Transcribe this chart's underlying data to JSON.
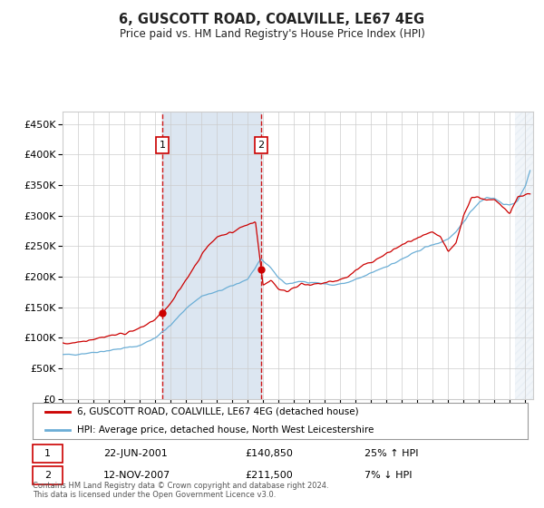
{
  "title": "6, GUSCOTT ROAD, COALVILLE, LE67 4EG",
  "subtitle": "Price paid vs. HM Land Registry's House Price Index (HPI)",
  "ylim": [
    0,
    470000
  ],
  "yticks": [
    0,
    50000,
    100000,
    150000,
    200000,
    250000,
    300000,
    350000,
    400000,
    450000
  ],
  "xlim_start": 1995.0,
  "xlim_end": 2025.5,
  "sale1_date": 2001.47,
  "sale1_price": 140850,
  "sale1_label": "1",
  "sale1_text": "22-JUN-2001",
  "sale1_price_text": "£140,850",
  "sale1_pct": "25% ↑ HPI",
  "sale2_date": 2007.87,
  "sale2_price": 211500,
  "sale2_label": "2",
  "sale2_text": "12-NOV-2007",
  "sale2_price_text": "£211,500",
  "sale2_pct": "7% ↓ HPI",
  "legend_label1": "6, GUSCOTT ROAD, COALVILLE, LE67 4EG (detached house)",
  "legend_label2": "HPI: Average price, detached house, North West Leicestershire",
  "footnote": "Contains HM Land Registry data © Crown copyright and database right 2024.\nThis data is licensed under the Open Government Licence v3.0.",
  "hpi_color": "#6baed6",
  "price_color": "#cc0000",
  "shade_color": "#dce6f1",
  "background_color": "#ffffff",
  "grid_color": "#cccccc",
  "hpi_key_points_t": [
    1995.0,
    1996.0,
    1997.0,
    1998.0,
    1999.0,
    2000.0,
    2001.0,
    2002.0,
    2003.0,
    2004.0,
    2005.0,
    2006.0,
    2007.0,
    2007.87,
    2008.5,
    2009.0,
    2009.5,
    2010.5,
    2011.5,
    2012.5,
    2013.5,
    2014.5,
    2015.5,
    2016.5,
    2017.5,
    2018.5,
    2019.0,
    2019.5,
    2020.0,
    2020.5,
    2021.0,
    2021.5,
    2022.0,
    2022.5,
    2023.0,
    2023.5,
    2024.0,
    2024.5,
    2025.0,
    2025.3
  ],
  "hpi_key_points_v": [
    72000,
    73000,
    76000,
    79000,
    83000,
    87000,
    100000,
    120000,
    148000,
    168000,
    175000,
    185000,
    196000,
    228000,
    215000,
    198000,
    188000,
    192000,
    190000,
    186000,
    190000,
    200000,
    212000,
    222000,
    235000,
    248000,
    252000,
    256000,
    262000,
    272000,
    290000,
    308000,
    322000,
    330000,
    328000,
    320000,
    316000,
    325000,
    348000,
    375000
  ],
  "price_key_points_t": [
    1995.0,
    1996.0,
    1997.0,
    1998.0,
    1999.0,
    2000.0,
    2001.0,
    2001.47,
    2002.0,
    2003.0,
    2004.0,
    2004.5,
    2005.0,
    2005.5,
    2006.0,
    2006.5,
    2007.0,
    2007.5,
    2007.87,
    2008.0,
    2008.5,
    2009.0,
    2009.5,
    2010.0,
    2010.5,
    2011.0,
    2011.5,
    2012.0,
    2012.5,
    2013.0,
    2013.5,
    2014.0,
    2014.5,
    2015.5,
    2016.5,
    2017.5,
    2018.0,
    2018.5,
    2019.0,
    2019.5,
    2020.0,
    2020.5,
    2021.0,
    2021.5,
    2022.0,
    2022.5,
    2023.0,
    2023.5,
    2024.0,
    2024.5,
    2025.0,
    2025.3
  ],
  "price_key_points_v": [
    90000,
    93000,
    98000,
    103000,
    107000,
    115000,
    130000,
    140850,
    155000,
    195000,
    235000,
    252000,
    265000,
    270000,
    272000,
    280000,
    285000,
    291000,
    211500,
    185000,
    195000,
    180000,
    175000,
    183000,
    188000,
    185000,
    188000,
    190000,
    192000,
    195000,
    200000,
    210000,
    218000,
    230000,
    245000,
    258000,
    262000,
    268000,
    272000,
    265000,
    240000,
    255000,
    300000,
    330000,
    330000,
    325000,
    325000,
    315000,
    305000,
    330000,
    335000,
    335000
  ]
}
